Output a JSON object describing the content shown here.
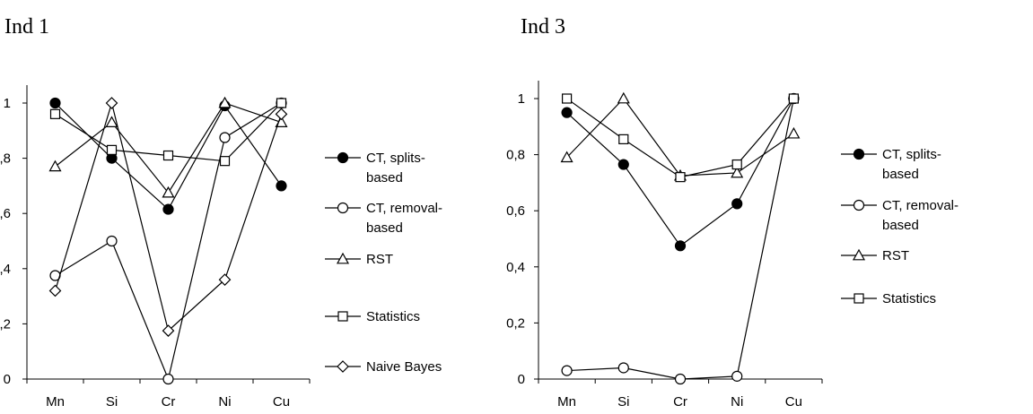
{
  "chart_data": [
    {
      "type": "line",
      "title": "Ind 1",
      "xlabel": "",
      "ylabel": "",
      "categories": [
        "Mn",
        "Si",
        "Cr",
        "Ni",
        "Cu"
      ],
      "ylim": [
        0,
        1
      ],
      "yticks": [
        "0",
        ",2",
        ",4",
        ",6",
        ",8",
        "1"
      ],
      "grid": false,
      "legend_position": "right",
      "series": [
        {
          "name": "CT, splits-based",
          "marker": "filled-circle",
          "values": [
            1.0,
            0.8,
            0.615,
            0.99,
            0.7
          ]
        },
        {
          "name": "CT, removal-based",
          "marker": "open-circle",
          "values": [
            0.375,
            0.5,
            0.0,
            0.875,
            1.0
          ]
        },
        {
          "name": "RST",
          "marker": "triangle",
          "values": [
            0.77,
            0.93,
            0.675,
            1.0,
            0.93
          ]
        },
        {
          "name": "Statistics",
          "marker": "square",
          "values": [
            0.96,
            0.83,
            0.81,
            0.79,
            1.0
          ]
        },
        {
          "name": "Naive Bayes",
          "marker": "diamond",
          "values": [
            0.32,
            1.0,
            0.175,
            0.36,
            0.96
          ]
        }
      ]
    },
    {
      "type": "line",
      "title": "Ind 3",
      "xlabel": "",
      "ylabel": "",
      "categories": [
        "Mn",
        "Si",
        "Cr",
        "Ni",
        "Cu"
      ],
      "ylim": [
        0,
        1
      ],
      "yticks": [
        "0",
        "0,2",
        "0,4",
        "0,6",
        "0,8",
        "1"
      ],
      "grid": false,
      "legend_position": "right",
      "series": [
        {
          "name": "CT, splits-based",
          "marker": "filled-circle",
          "values": [
            0.95,
            0.765,
            0.475,
            0.625,
            1.0
          ]
        },
        {
          "name": "CT, removal-based",
          "marker": "open-circle",
          "values": [
            0.03,
            0.04,
            0.0,
            0.01,
            1.0
          ]
        },
        {
          "name": "RST",
          "marker": "triangle",
          "values": [
            0.79,
            1.0,
            0.725,
            0.735,
            0.875
          ]
        },
        {
          "name": "Statistics",
          "marker": "square",
          "values": [
            1.0,
            0.855,
            0.72,
            0.765,
            1.0
          ]
        }
      ]
    }
  ]
}
